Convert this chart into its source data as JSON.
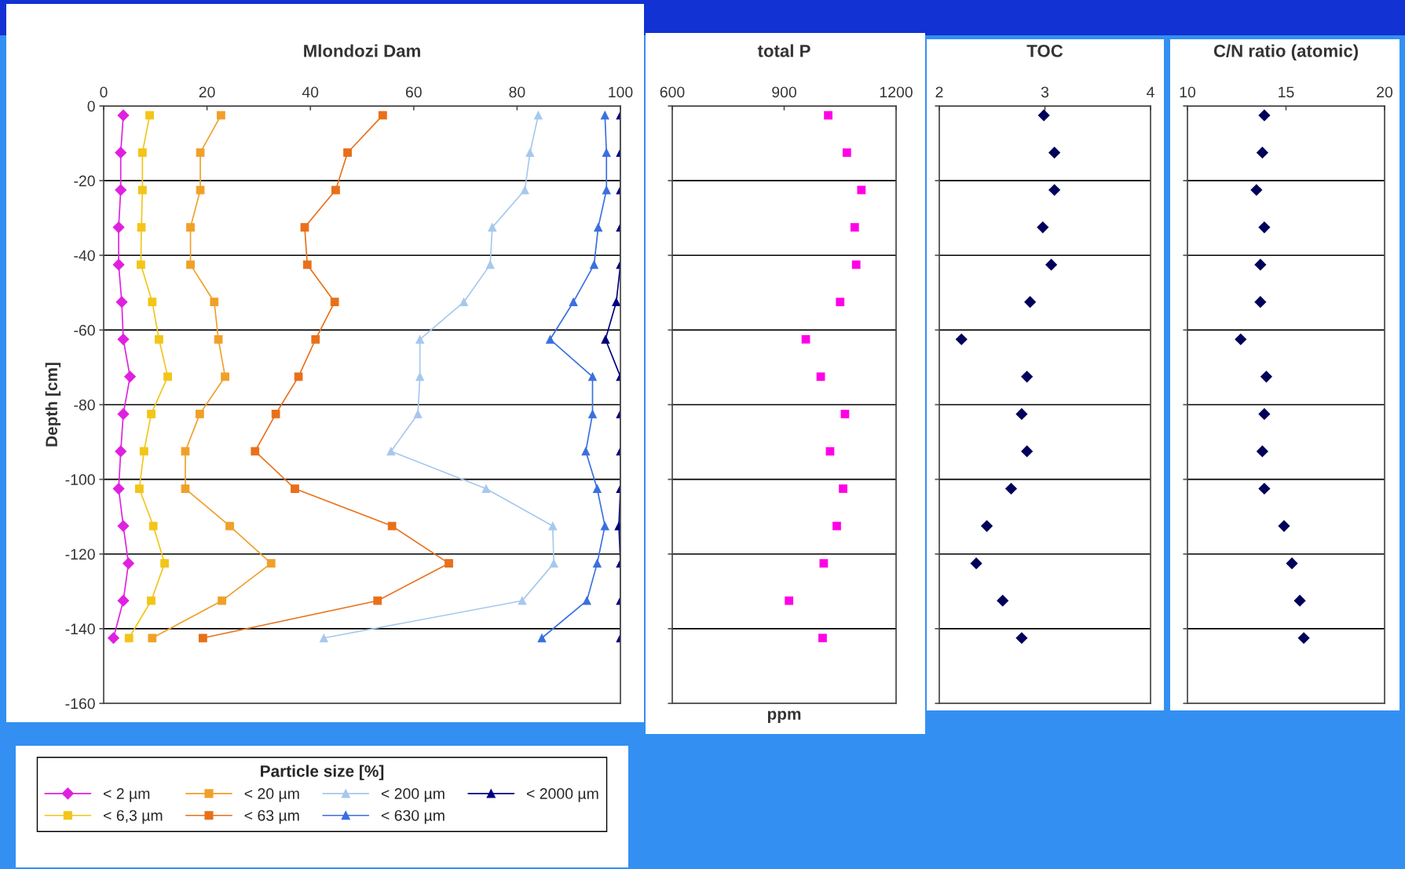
{
  "chart_data": [
    {
      "type": "line",
      "title": "Mlondozi Dam",
      "ylabel": "Depth [cm]",
      "xlim": [
        0,
        100
      ],
      "xticks": [
        0,
        20,
        40,
        60,
        80,
        100
      ],
      "ylim": [
        -160,
        0
      ],
      "yticks": [
        -160,
        -140,
        -120,
        -100,
        -80,
        -60,
        -40,
        -20,
        0
      ],
      "grid": "y",
      "legend": "bottom",
      "legend_title": "Particle size [%]",
      "series": [
        {
          "name": "< 2 µm",
          "color": "#e020e0",
          "marker": "diamond",
          "x": [
            3.8,
            3.3,
            3.3,
            2.9,
            2.9,
            3.5,
            3.8,
            5.1,
            3.8,
            3.3,
            2.9,
            3.8,
            4.8,
            3.8,
            1.9
          ],
          "values": [
            -2.5,
            -12.5,
            -22.5,
            -32.5,
            -42.5,
            -52.5,
            -62.5,
            -72.5,
            -82.5,
            -92.5,
            -102.5,
            -112.5,
            -122.5,
            -132.5,
            -142.5
          ]
        },
        {
          "name": "< 6,3 µm",
          "color": "#f2c518",
          "marker": "square",
          "x": [
            8.9,
            7.5,
            7.5,
            7.3,
            7.2,
            9.4,
            10.7,
            12.4,
            9.2,
            7.8,
            6.9,
            9.6,
            11.8,
            9.2,
            4.9
          ],
          "values": [
            -2.5,
            -12.5,
            -22.5,
            -32.5,
            -42.5,
            -52.5,
            -62.5,
            -72.5,
            -82.5,
            -92.5,
            -102.5,
            -112.5,
            -122.5,
            -132.5,
            -142.5
          ]
        },
        {
          "name": "< 20 µm",
          "color": "#f0a028",
          "marker": "square",
          "x": [
            22.7,
            18.7,
            18.7,
            16.8,
            16.8,
            21.4,
            22.2,
            23.5,
            18.6,
            15.8,
            15.8,
            24.4,
            32.4,
            22.9,
            9.4
          ],
          "values": [
            -2.5,
            -12.5,
            -22.5,
            -32.5,
            -42.5,
            -52.5,
            -62.5,
            -72.5,
            -82.5,
            -92.5,
            -102.5,
            -112.5,
            -122.5,
            -132.5,
            -142.5
          ]
        },
        {
          "name": "< 63 µm",
          "color": "#e8701a",
          "marker": "square",
          "x": [
            54.0,
            47.2,
            44.9,
            38.9,
            39.4,
            44.7,
            41.0,
            37.7,
            33.3,
            29.3,
            37.0,
            55.8,
            66.8,
            53.0,
            19.2
          ],
          "values": [
            -2.5,
            -12.5,
            -22.5,
            -32.5,
            -42.5,
            -52.5,
            -62.5,
            -72.5,
            -82.5,
            -92.5,
            -102.5,
            -112.5,
            -122.5,
            -132.5,
            -142.5
          ]
        },
        {
          "name": "< 200 µm",
          "color": "#a6c8ee",
          "marker": "triangle",
          "x": [
            84.1,
            82.5,
            81.5,
            75.2,
            74.8,
            69.7,
            61.2,
            61.2,
            60.8,
            55.6,
            74.0,
            86.9,
            87.1,
            81.0,
            42.6
          ],
          "values": [
            -2.5,
            -12.5,
            -22.5,
            -32.5,
            -42.5,
            -52.5,
            -62.5,
            -72.5,
            -82.5,
            -92.5,
            -102.5,
            -112.5,
            -122.5,
            -132.5,
            -142.5
          ]
        },
        {
          "name": "< 630 µm",
          "color": "#3a6fe0",
          "marker": "triangle",
          "x": [
            97.0,
            97.3,
            97.3,
            95.7,
            94.9,
            90.9,
            86.4,
            94.6,
            94.6,
            93.3,
            95.5,
            97.0,
            95.5,
            93.5,
            84.8
          ],
          "values": [
            -2.5,
            -12.5,
            -22.5,
            -32.5,
            -42.5,
            -52.5,
            -62.5,
            -72.5,
            -82.5,
            -92.5,
            -102.5,
            -112.5,
            -122.5,
            -132.5,
            -142.5
          ]
        },
        {
          "name": "< 2000 µm",
          "color": "#000080",
          "marker": "triangle",
          "x": [
            100,
            100,
            100,
            100,
            100,
            99.2,
            97.1,
            100,
            100,
            100,
            100,
            99.7,
            100,
            100,
            100
          ],
          "values": [
            -2.5,
            -12.5,
            -22.5,
            -32.5,
            -42.5,
            -52.5,
            -62.5,
            -72.5,
            -82.5,
            -92.5,
            -102.5,
            -112.5,
            -122.5,
            -132.5,
            -142.5
          ]
        }
      ]
    },
    {
      "type": "scatter",
      "title": "total P",
      "xlabel": "ppm",
      "xlim": [
        600,
        1200
      ],
      "xticks": [
        600,
        900,
        1200
      ],
      "ylim": [
        -160,
        0
      ],
      "yticks": [
        -160,
        -140,
        -120,
        -100,
        -80,
        -60,
        -40,
        -20,
        0
      ],
      "grid": "y",
      "tick_labels": "x",
      "series": [
        {
          "color": "#ff00e6",
          "marker": "square",
          "x": [
            1018,
            1068,
            1107,
            1089,
            1093,
            1050,
            958,
            998,
            1063,
            1023,
            1058,
            1041,
            1006,
            913,
            1003
          ],
          "values": [
            -2.5,
            -12.5,
            -22.5,
            -32.5,
            -42.5,
            -52.5,
            -62.5,
            -72.5,
            -82.5,
            -92.5,
            -102.5,
            -112.5,
            -122.5,
            -132.5,
            -142.5
          ]
        }
      ]
    },
    {
      "type": "scatter",
      "title": "TOC",
      "xlim": [
        2,
        4
      ],
      "xticks": [
        2,
        3,
        4
      ],
      "ylim": [
        -160,
        0
      ],
      "yticks": [
        -160,
        -140,
        -120,
        -100,
        -80,
        -60,
        -40,
        -20,
        0
      ],
      "grid": "y",
      "tick_labels": "x",
      "series": [
        {
          "color": "#00005a",
          "marker": "diamond",
          "x": [
            2.99,
            3.09,
            3.09,
            2.98,
            3.06,
            2.86,
            2.21,
            2.83,
            2.78,
            2.83,
            2.68,
            2.45,
            2.35,
            2.6,
            2.78
          ],
          "values": [
            -2.5,
            -12.5,
            -22.5,
            -32.5,
            -42.5,
            -52.5,
            -62.5,
            -72.5,
            -82.5,
            -92.5,
            -102.5,
            -112.5,
            -122.5,
            -132.5,
            -142.5
          ]
        }
      ]
    },
    {
      "type": "scatter",
      "title": "C/N ratio (atomic)",
      "xlim": [
        10,
        20
      ],
      "xticks": [
        10,
        15,
        20
      ],
      "ylim": [
        -160,
        0
      ],
      "yticks": [
        -160,
        -140,
        -120,
        -100,
        -80,
        -60,
        -40,
        -20,
        0
      ],
      "grid": "y",
      "tick_labels": "x",
      "series": [
        {
          "color": "#00005a",
          "marker": "diamond",
          "x": [
            13.9,
            13.8,
            13.5,
            13.9,
            13.7,
            13.7,
            12.7,
            14.0,
            13.9,
            13.8,
            13.9,
            14.9,
            15.3,
            15.7,
            15.9
          ],
          "values": [
            -2.5,
            -12.5,
            -22.5,
            -32.5,
            -42.5,
            -52.5,
            -62.5,
            -72.5,
            -82.5,
            -92.5,
            -102.5,
            -112.5,
            -122.5,
            -132.5,
            -142.5
          ]
        }
      ]
    }
  ]
}
